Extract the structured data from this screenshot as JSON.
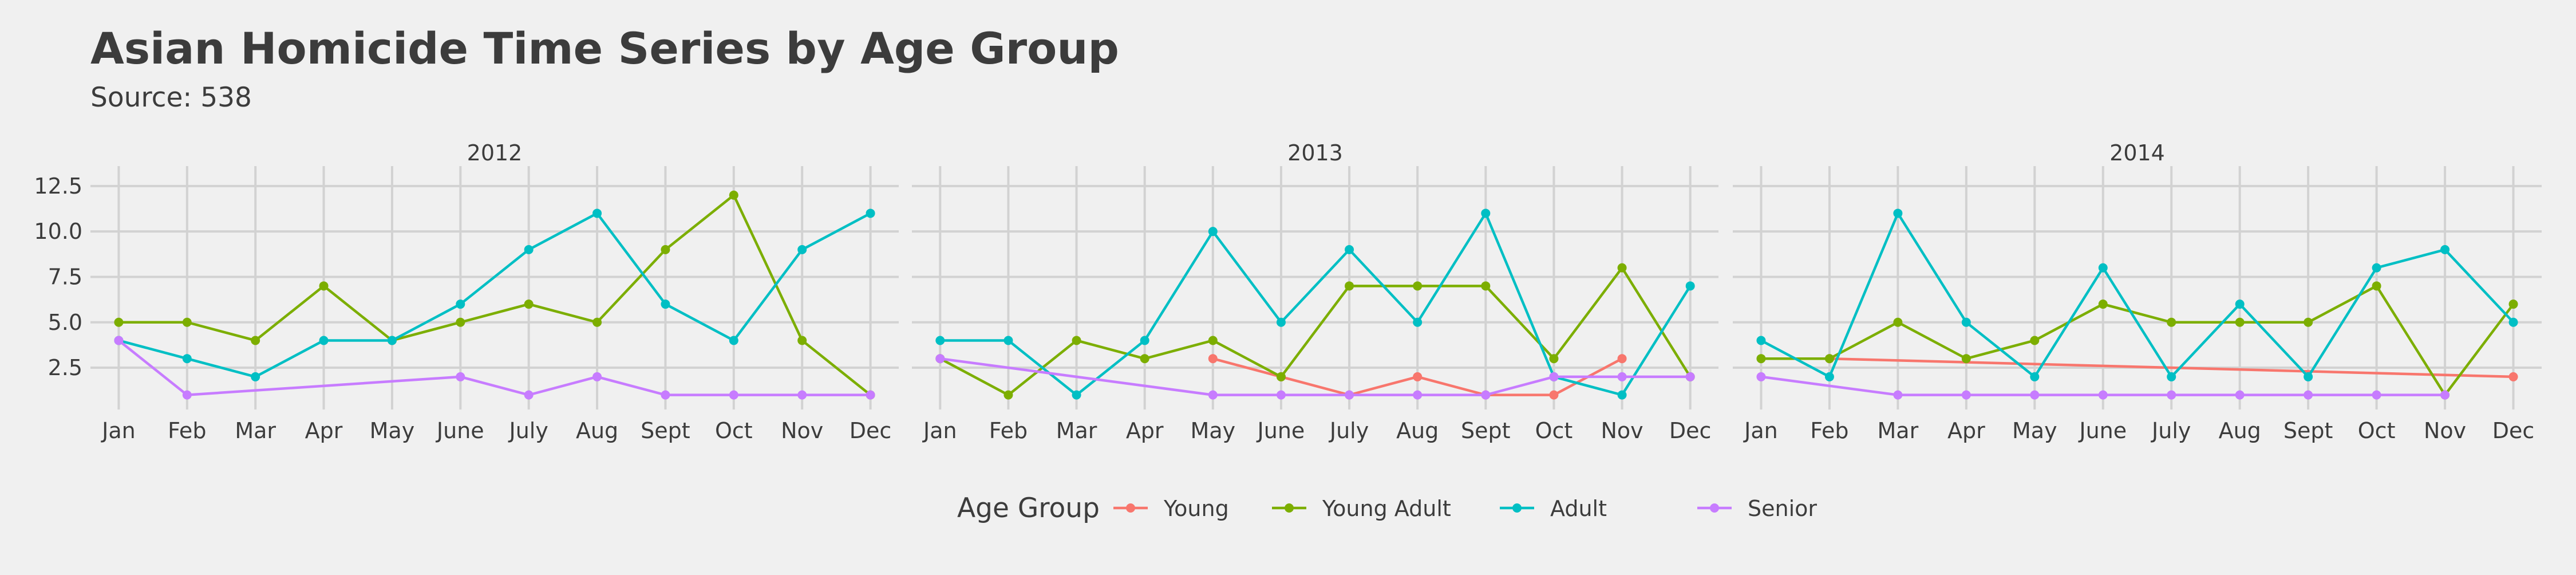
{
  "chart_data": {
    "type": "line",
    "title": "Asian Homicide Time Series by Age Group",
    "subtitle": "Source: 538",
    "legend_title": "Age Group",
    "legend_position": "bottom",
    "grid": true,
    "ylim": [
      0.2,
      13.6
    ],
    "y_ticks": [
      "2.5",
      "5.0",
      "7.5",
      "10.0",
      "12.5"
    ],
    "months": [
      "Jan",
      "Feb",
      "Mar",
      "Apr",
      "May",
      "June",
      "July",
      "Aug",
      "Sept",
      "Oct",
      "Nov",
      "Dec"
    ],
    "series_meta": [
      {
        "name": "Young",
        "color": "#f8766d"
      },
      {
        "name": "Young Adult",
        "color": "#7cae00"
      },
      {
        "name": "Adult",
        "color": "#00bfc4"
      },
      {
        "name": "Senior",
        "color": "#c77cff"
      }
    ],
    "panels": [
      {
        "title": "2012",
        "series": [
          {
            "name": "Young",
            "points": []
          },
          {
            "name": "Young Adult",
            "points": [
              [
                "Jan",
                5
              ],
              [
                "Feb",
                5
              ],
              [
                "Mar",
                4
              ],
              [
                "Apr",
                7
              ],
              [
                "May",
                4
              ],
              [
                "June",
                5
              ],
              [
                "July",
                6
              ],
              [
                "Aug",
                5
              ],
              [
                "Sept",
                9
              ],
              [
                "Oct",
                12
              ],
              [
                "Nov",
                4
              ],
              [
                "Dec",
                1
              ]
            ]
          },
          {
            "name": "Adult",
            "points": [
              [
                "Jan",
                4
              ],
              [
                "Feb",
                3
              ],
              [
                "Mar",
                2
              ],
              [
                "Apr",
                4
              ],
              [
                "May",
                4
              ],
              [
                "June",
                6
              ],
              [
                "July",
                9
              ],
              [
                "Aug",
                11
              ],
              [
                "Sept",
                6
              ],
              [
                "Oct",
                4
              ],
              [
                "Nov",
                9
              ],
              [
                "Dec",
                11
              ]
            ]
          },
          {
            "name": "Senior",
            "points": [
              [
                "Jan",
                4
              ],
              [
                "Feb",
                1
              ],
              [
                "June",
                2
              ],
              [
                "July",
                1
              ],
              [
                "Aug",
                2
              ],
              [
                "Sept",
                1
              ],
              [
                "Oct",
                1
              ],
              [
                "Nov",
                1
              ],
              [
                "Dec",
                1
              ]
            ]
          }
        ]
      },
      {
        "title": "2013",
        "series": [
          {
            "name": "Young",
            "points": [
              [
                "May",
                3
              ],
              [
                "June",
                2
              ],
              [
                "July",
                1
              ],
              [
                "Aug",
                2
              ],
              [
                "Sept",
                1
              ],
              [
                "Oct",
                1
              ],
              [
                "Nov",
                3
              ]
            ]
          },
          {
            "name": "Young Adult",
            "points": [
              [
                "Jan",
                3
              ],
              [
                "Feb",
                1
              ],
              [
                "Mar",
                4
              ],
              [
                "Apr",
                3
              ],
              [
                "May",
                4
              ],
              [
                "June",
                2
              ],
              [
                "July",
                7
              ],
              [
                "Aug",
                7
              ],
              [
                "Sept",
                7
              ],
              [
                "Oct",
                3
              ],
              [
                "Nov",
                8
              ],
              [
                "Dec",
                2
              ]
            ]
          },
          {
            "name": "Adult",
            "points": [
              [
                "Jan",
                4
              ],
              [
                "Feb",
                4
              ],
              [
                "Mar",
                1
              ],
              [
                "Apr",
                4
              ],
              [
                "May",
                10
              ],
              [
                "June",
                5
              ],
              [
                "July",
                9
              ],
              [
                "Aug",
                5
              ],
              [
                "Sept",
                11
              ],
              [
                "Oct",
                2
              ],
              [
                "Nov",
                1
              ],
              [
                "Dec",
                7
              ]
            ]
          },
          {
            "name": "Senior",
            "points": [
              [
                "Jan",
                3
              ],
              [
                "May",
                1
              ],
              [
                "June",
                1
              ],
              [
                "July",
                1
              ],
              [
                "Aug",
                1
              ],
              [
                "Sept",
                1
              ],
              [
                "Oct",
                2
              ],
              [
                "Nov",
                2
              ],
              [
                "Dec",
                2
              ]
            ]
          }
        ]
      },
      {
        "title": "2014",
        "series": [
          {
            "name": "Young",
            "points": [
              [
                "Feb",
                3
              ],
              [
                "Dec",
                2
              ]
            ]
          },
          {
            "name": "Young Adult",
            "points": [
              [
                "Jan",
                3
              ],
              [
                "Feb",
                3
              ],
              [
                "Mar",
                5
              ],
              [
                "Apr",
                3
              ],
              [
                "May",
                4
              ],
              [
                "June",
                6
              ],
              [
                "July",
                5
              ],
              [
                "Aug",
                5
              ],
              [
                "Sept",
                5
              ],
              [
                "Oct",
                7
              ],
              [
                "Nov",
                1
              ],
              [
                "Dec",
                6
              ]
            ]
          },
          {
            "name": "Adult",
            "points": [
              [
                "Jan",
                4
              ],
              [
                "Feb",
                2
              ],
              [
                "Mar",
                11
              ],
              [
                "Apr",
                5
              ],
              [
                "May",
                2
              ],
              [
                "June",
                8
              ],
              [
                "July",
                2
              ],
              [
                "Aug",
                6
              ],
              [
                "Sept",
                2
              ],
              [
                "Oct",
                8
              ],
              [
                "Nov",
                9
              ],
              [
                "Dec",
                5
              ]
            ]
          },
          {
            "name": "Senior",
            "points": [
              [
                "Jan",
                2
              ],
              [
                "Mar",
                1
              ],
              [
                "Apr",
                1
              ],
              [
                "May",
                1
              ],
              [
                "June",
                1
              ],
              [
                "July",
                1
              ],
              [
                "Aug",
                1
              ],
              [
                "Sept",
                1
              ],
              [
                "Oct",
                1
              ],
              [
                "Nov",
                1
              ]
            ]
          }
        ]
      }
    ]
  }
}
